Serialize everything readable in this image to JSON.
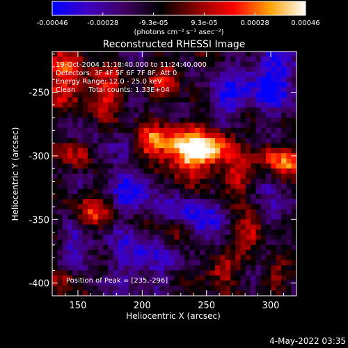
{
  "chart_data": {
    "type": "heatmap",
    "title": "Reconstructed RHESSI Image",
    "xlabel": "Heliocentric X (arcsec)",
    "ylabel": "Heliocentric Y (arcsec)",
    "xlim": [
      130,
      320
    ],
    "ylim": [
      -410,
      -218
    ],
    "xticks": [
      150,
      200,
      250,
      300
    ],
    "yticks": [
      -250,
      -300,
      -350,
      -400
    ],
    "colorbar": {
      "range": [
        -0.00046,
        0.00046
      ],
      "ticks": [
        "-0.00046",
        "-0.00028",
        "-9.3e-05",
        "9.3e-05",
        "0.00028",
        "0.00046"
      ],
      "unit_label": "(photons cm⁻² s⁻¹ asec⁻²)",
      "colormap": [
        "#0000ff",
        "#4000c0",
        "#400060",
        "#000000",
        "#8a0000",
        "#ff0000",
        "#ffa000",
        "#ffffff"
      ]
    },
    "annotations": [
      "19-Oct-2004 11:18:40.000 to 11:24:40.000",
      "Detectors: 3F 4F 5F 6F 7F 8F, Att 0",
      "Energy Range: 12.0 - 25.0 keV",
      "Clean      Total counts: 1.33E+04"
    ],
    "peak_label": "Position of Peak = [235,-296]",
    "peak": {
      "x": 235,
      "y": -296
    },
    "hotspots": [
      {
        "x": 235,
        "y": -296,
        "amp": 1.0,
        "sigma": 14
      },
      {
        "x": 262,
        "y": -292,
        "amp": 0.55,
        "sigma": 10
      },
      {
        "x": 205,
        "y": -290,
        "amp": 0.55,
        "sigma": 9
      },
      {
        "x": 140,
        "y": -238,
        "amp": 0.55,
        "sigma": 14
      },
      {
        "x": 172,
        "y": -250,
        "amp": 0.5,
        "sigma": 11
      },
      {
        "x": 220,
        "y": -238,
        "amp": 0.45,
        "sigma": 9
      },
      {
        "x": 300,
        "y": -300,
        "amp": 0.5,
        "sigma": 8
      },
      {
        "x": 313,
        "y": -303,
        "amp": 0.6,
        "sigma": 7
      },
      {
        "x": 270,
        "y": -318,
        "amp": 0.5,
        "sigma": 9
      },
      {
        "x": 150,
        "y": -300,
        "amp": 0.45,
        "sigma": 8
      },
      {
        "x": 160,
        "y": -345,
        "amp": 0.45,
        "sigma": 9
      },
      {
        "x": 285,
        "y": -360,
        "amp": 0.55,
        "sigma": 9
      },
      {
        "x": 260,
        "y": -390,
        "amp": 0.5,
        "sigma": 9
      },
      {
        "x": 225,
        "y": -360,
        "amp": 0.4,
        "sigma": 9
      },
      {
        "x": 140,
        "y": -395,
        "amp": 0.45,
        "sigma": 8
      },
      {
        "x": 300,
        "y": -400,
        "amp": 0.4,
        "sigma": 7
      }
    ],
    "coldspots": [
      {
        "x": 300,
        "y": -240,
        "amp": 0.7,
        "sigma": 16
      },
      {
        "x": 265,
        "y": -255,
        "amp": 0.5,
        "sigma": 12
      },
      {
        "x": 195,
        "y": -325,
        "amp": 0.6,
        "sigma": 12
      },
      {
        "x": 240,
        "y": -350,
        "amp": 0.6,
        "sigma": 14
      },
      {
        "x": 200,
        "y": -380,
        "amp": 0.55,
        "sigma": 14
      },
      {
        "x": 150,
        "y": -375,
        "amp": 0.45,
        "sigma": 11
      },
      {
        "x": 305,
        "y": -345,
        "amp": 0.4,
        "sigma": 9
      },
      {
        "x": 170,
        "y": -300,
        "amp": 0.35,
        "sigma": 8
      }
    ],
    "grid": false
  },
  "footer": {
    "timestamp": "4-May-2022 03:35"
  }
}
